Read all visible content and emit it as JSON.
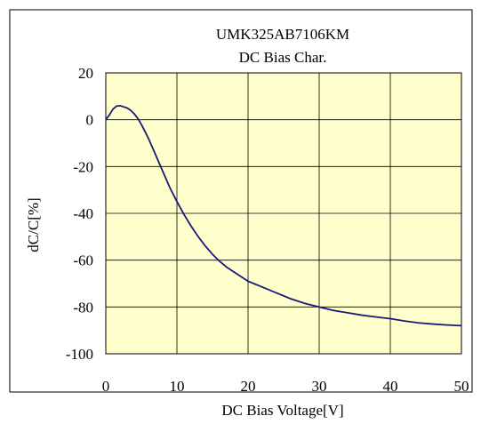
{
  "chart_data": {
    "type": "line",
    "title": "UMK325AB7106KM",
    "subtitle": "DC Bias Char.",
    "xlabel": "DC Bias Voltage[V]",
    "ylabel": "dC/C[%]",
    "xlim": [
      0,
      50
    ],
    "ylim": [
      -100,
      20
    ],
    "xticks": [
      0,
      10,
      20,
      30,
      40,
      50
    ],
    "yticks": [
      20,
      0,
      -20,
      -40,
      -60,
      -80,
      -100
    ],
    "grid": true,
    "legend": "none",
    "plot_background": "#ffffcc",
    "line_color": "#1a1a7a",
    "series": [
      {
        "x": [
          0,
          0.5,
          1,
          1.5,
          2,
          2.5,
          3,
          3.5,
          4,
          4.5,
          5,
          6,
          7,
          8,
          9,
          10,
          11,
          12,
          13,
          14,
          15,
          16,
          17,
          18,
          19,
          20,
          22,
          24,
          26,
          28,
          30,
          32,
          34,
          36,
          38,
          40,
          42,
          44,
          46,
          48,
          50
        ],
        "y": [
          0,
          2,
          4.5,
          5.8,
          6,
          5.5,
          5,
          4,
          2.5,
          0.5,
          -2,
          -8,
          -15,
          -22,
          -29,
          -35,
          -40.5,
          -45.5,
          -50,
          -54,
          -57.5,
          -60.5,
          -63,
          -65,
          -67,
          -69,
          -71.5,
          -74,
          -76.5,
          -78.5,
          -80,
          -81.5,
          -82.5,
          -83.5,
          -84.3,
          -85,
          -86,
          -86.8,
          -87.3,
          -87.7,
          -88
        ]
      }
    ]
  }
}
